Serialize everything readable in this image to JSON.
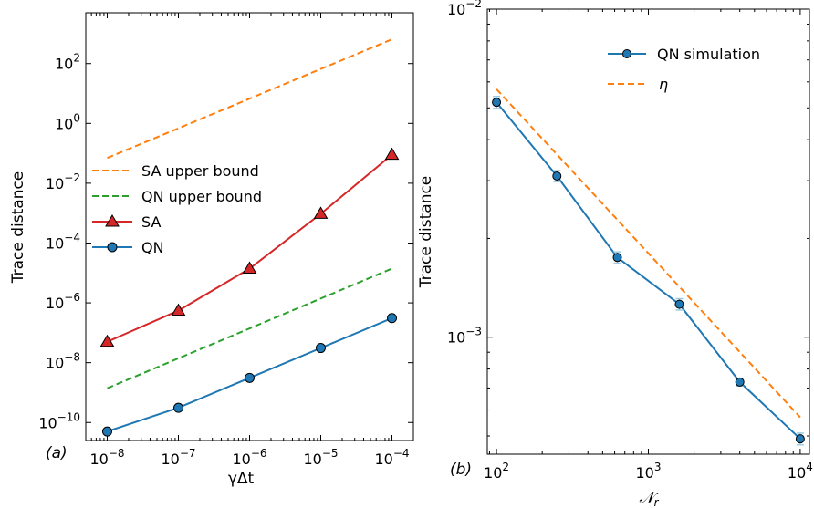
{
  "chart_data": [
    {
      "type": "line",
      "panel_label": "(a)",
      "xscale": "log",
      "yscale": "log",
      "xlabel": "γΔt",
      "ylabel": "Trace distance",
      "xlim": [
        5e-09,
        0.0002
      ],
      "ylim": [
        2.5e-11,
        5000
      ],
      "x_ticks": [
        {
          "base": "10",
          "exp": "−8",
          "value": 1e-08
        },
        {
          "base": "10",
          "exp": "−7",
          "value": 1e-07
        },
        {
          "base": "10",
          "exp": "−6",
          "value": 1e-06
        },
        {
          "base": "10",
          "exp": "−5",
          "value": 1e-05
        },
        {
          "base": "10",
          "exp": "−4",
          "value": 0.0001
        }
      ],
      "y_ticks": [
        {
          "base": "10",
          "exp": "−10",
          "value": 1e-10
        },
        {
          "base": "10",
          "exp": "−8",
          "value": 1e-08
        },
        {
          "base": "10",
          "exp": "−6",
          "value": 1e-06
        },
        {
          "base": "10",
          "exp": "−4",
          "value": 0.0001
        },
        {
          "base": "10",
          "exp": "−2",
          "value": 0.01
        },
        {
          "base": "10",
          "exp": "0",
          "value": 1
        },
        {
          "base": "10",
          "exp": "2",
          "value": 100
        }
      ],
      "legend_position": "center-left",
      "series": [
        {
          "name": "SA upper bound",
          "color": "#ff7f0e",
          "dashed": true,
          "marker": "none",
          "x": [
            1e-08,
            0.0001
          ],
          "y": [
            0.07,
            650
          ]
        },
        {
          "name": "QN upper bound",
          "color": "#2ca02c",
          "dashed": true,
          "marker": "none",
          "x": [
            1e-08,
            0.0001
          ],
          "y": [
            1.4e-09,
            1.4e-05
          ]
        },
        {
          "name": "SA",
          "color": "#d62728",
          "dashed": false,
          "marker": "triangle",
          "x": [
            1e-08,
            1e-07,
            1e-06,
            1e-05,
            0.0001
          ],
          "y": [
            5e-08,
            5.5e-07,
            1.4e-05,
            0.00095,
            0.09
          ]
        },
        {
          "name": "QN",
          "color": "#1f77b4",
          "dashed": false,
          "marker": "circle",
          "x": [
            1e-08,
            1e-07,
            1e-06,
            1e-05,
            0.0001
          ],
          "y": [
            5e-11,
            3.1e-10,
            3.1e-09,
            3.1e-08,
            3.1e-07
          ]
        }
      ]
    },
    {
      "type": "line",
      "panel_label": "(b)",
      "xscale": "log",
      "yscale": "log",
      "xlabel": "𝒩",
      "xlabel_sub": "r",
      "ylabel": "Trace distance",
      "xlim": [
        87,
        11500
      ],
      "ylim": [
        0.00044,
        0.01
      ],
      "x_ticks": [
        {
          "base": "10",
          "exp": "2",
          "value": 100
        },
        {
          "base": "10",
          "exp": "3",
          "value": 1000
        },
        {
          "base": "10",
          "exp": "4",
          "value": 10000
        }
      ],
      "y_ticks": [
        {
          "base": "10",
          "exp": "−3",
          "value": 0.001
        },
        {
          "base": "10",
          "exp": "−2",
          "value": 0.01
        }
      ],
      "legend_position": "top-right",
      "series": [
        {
          "name": "QN simulation",
          "color": "#1f77b4",
          "dashed": false,
          "marker": "circle",
          "x": [
            100,
            250,
            625,
            1600,
            4000,
            10000
          ],
          "y": [
            0.0052,
            0.0031,
            0.00175,
            0.00126,
            0.00073,
            0.00049
          ],
          "err": [
            0.00022,
            0.00012,
            7e-05,
            5e-05,
            2e-05,
            2e-05
          ]
        },
        {
          "name": "η",
          "color": "#ff7f0e",
          "dashed": true,
          "marker": "none",
          "x": [
            100,
            10000
          ],
          "y": [
            0.0057,
            0.00057
          ]
        }
      ]
    }
  ]
}
